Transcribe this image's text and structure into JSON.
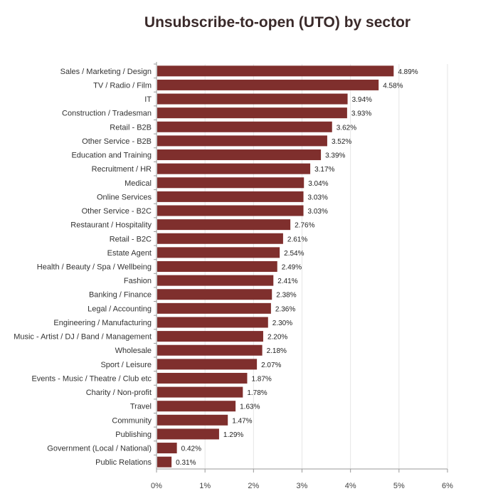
{
  "chart_data": {
    "type": "bar",
    "orientation": "horizontal",
    "title": "Unsubscribe-to-open (UTO) by sector",
    "xlabel": "",
    "ylabel": "",
    "xlim": [
      0,
      6
    ],
    "x_ticks": [
      "0%",
      "1%",
      "2%",
      "3%",
      "4%",
      "5%",
      "6%"
    ],
    "grid": true,
    "bar_color": "#7f2f2d",
    "categories": [
      "Sales / Marketing / Design",
      "TV / Radio / Film",
      "IT",
      "Construction / Tradesman",
      "Retail - B2B",
      "Other Service - B2B",
      "Education and Training",
      "Recruitment / HR",
      "Medical",
      "Online Services",
      "Other Service - B2C",
      "Restaurant / Hospitality",
      "Retail - B2C",
      "Estate Agent",
      "Health / Beauty / Spa / Wellbeing",
      "Fashion",
      "Banking / Finance",
      "Legal / Accounting",
      "Engineering / Manufacturing",
      "Music - Artist / DJ / Band / Management",
      "Wholesale",
      "Sport / Leisure",
      "Events - Music / Theatre / Club etc",
      "Charity / Non-profit",
      "Travel",
      "Community",
      "Publishing",
      "Government (Local / National)",
      "Public Relations"
    ],
    "values": [
      4.89,
      4.58,
      3.94,
      3.93,
      3.62,
      3.52,
      3.39,
      3.17,
      3.04,
      3.03,
      3.03,
      2.76,
      2.61,
      2.54,
      2.49,
      2.41,
      2.38,
      2.36,
      2.3,
      2.2,
      2.18,
      2.07,
      1.87,
      1.78,
      1.63,
      1.47,
      1.29,
      0.42,
      0.31
    ],
    "data_labels": [
      "4.89%",
      "4.58%",
      "3.94%",
      "3.93%",
      "3.62%",
      "3.52%",
      "3.39%",
      "3.17%",
      "3.04%",
      "3.03%",
      "3.03%",
      "2.76%",
      "2.61%",
      "2.54%",
      "2.49%",
      "2.41%",
      "2.38%",
      "2.36%",
      "2.30%",
      "2.20%",
      "2.18%",
      "2.07%",
      "1.87%",
      "1.78%",
      "1.63%",
      "1.47%",
      "1.29%",
      "0.42%",
      "0.31%"
    ]
  }
}
